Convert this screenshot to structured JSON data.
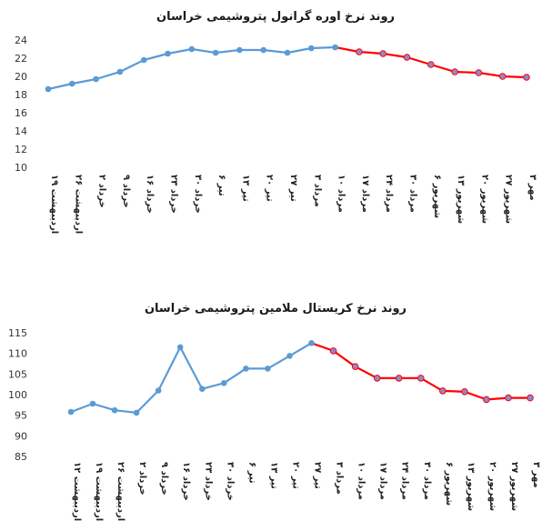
{
  "chart_data": [
    {
      "type": "line",
      "title": "روند نرخ اوره گرانول پتروشیمی خراسان",
      "xlabel": "",
      "ylabel": "",
      "ylim": [
        10,
        24
      ],
      "yticks": [
        "24",
        "22",
        "20",
        "18",
        "16",
        "14",
        "12",
        "10"
      ],
      "grid": false,
      "categories": [
        "۱۹ اردیبهشت",
        "۲۶ اردیبهشت",
        "۲ خرداد",
        "۹ خرداد",
        "۱۶ خرداد",
        "۲۳ خرداد",
        "۳۰ خرداد",
        "۶ تیر",
        "۱۳ تیر",
        "۲۰ تیر",
        "۲۷ تیر",
        "۳ مرداد",
        "۱۰ مرداد",
        "۱۷ مرداد",
        "۲۴ مرداد",
        "۳۰ مرداد",
        "۶ شهریور",
        "۱۳ شهریور",
        "۲۰ شهریور",
        "۲۷ شهریور",
        "۳ مهر"
      ],
      "series": [
        {
          "values": [
            18.6,
            19.2,
            19.7,
            20.5,
            21.8,
            22.5,
            23.0,
            22.6,
            22.9,
            22.9,
            22.6,
            23.1,
            23.2,
            22.7,
            22.5,
            22.1,
            21.3,
            20.5,
            20.4,
            20.0,
            19.9
          ]
        }
      ],
      "highlight_from_index": 12,
      "colors": {
        "line": "#5b9bd5",
        "highlight": "#ff0000",
        "marker": "#5b9bd5",
        "highlight_marker": "#8a8ad0"
      }
    },
    {
      "type": "line",
      "title": "روند نرخ کریستال ملامین پتروشیمی خراسان",
      "xlabel": "",
      "ylabel": "",
      "ylim": [
        85,
        115
      ],
      "yticks": [
        "115",
        "110",
        "105",
        "100",
        "95",
        "90",
        "85"
      ],
      "grid": false,
      "categories": [
        "۱۲ اردیبهشت",
        "۱۹ اردیبهشت",
        "۲۶ اردیبهشت",
        "۲ خرداد",
        "۹ خرداد",
        "۱۶ خرداد",
        "۲۳ خرداد",
        "۳۰ خرداد",
        "۶ تیر",
        "۱۳ تیر",
        "۲۰ تیر",
        "۲۷ تیر",
        "۳ مرداد",
        "۱۰ مرداد",
        "۱۷ مرداد",
        "۲۴ مرداد",
        "۳۰ مرداد",
        "۶ شهریور",
        "۱۳ شهریور",
        "۲۰ شهریور",
        "۲۷ شهریور",
        "۳ مهر"
      ],
      "series": [
        {
          "values": [
            95.8,
            97.8,
            96.2,
            95.6,
            101.0,
            111.5,
            101.4,
            102.8,
            106.3,
            106.3,
            109.4,
            112.5,
            110.6,
            106.8,
            104.0,
            104.0,
            104.0,
            100.9,
            100.7,
            98.8,
            99.2,
            99.2
          ]
        }
      ],
      "highlight_from_index": 11,
      "colors": {
        "line": "#5b9bd5",
        "highlight": "#ff0000",
        "marker": "#5b9bd5",
        "highlight_marker": "#8a8ad0"
      }
    }
  ]
}
